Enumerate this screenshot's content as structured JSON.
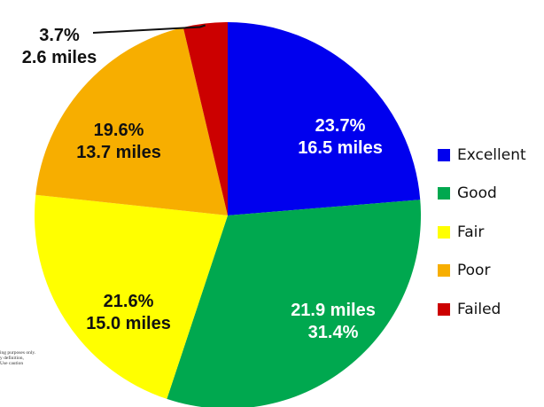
{
  "chart_data": {
    "type": "pie",
    "start_angle_deg": 0,
    "direction": "clockwise",
    "slices": [
      {
        "name": "Excellent",
        "percent": 23.7,
        "miles": 16.5,
        "percent_label": "23.7%",
        "miles_label": "16.5 miles",
        "color": "#0000EE",
        "label_color": "#FFFFFF",
        "label_order": "percent-first"
      },
      {
        "name": "Good",
        "percent": 31.4,
        "miles": 21.9,
        "percent_label": "31.4%",
        "miles_label": "21.9 miles",
        "color": "#00A84F",
        "label_color": "#FFFFFF",
        "label_order": "miles-first"
      },
      {
        "name": "Fair",
        "percent": 21.6,
        "miles": 15.0,
        "percent_label": "21.6%",
        "miles_label": "15.0 miles",
        "color": "#FFFF00",
        "label_color": "#111111",
        "label_order": "percent-first"
      },
      {
        "name": "Poor",
        "percent": 19.6,
        "miles": 13.7,
        "percent_label": "19.6%",
        "miles_label": "13.7 miles",
        "color": "#F7AE00",
        "label_color": "#111111",
        "label_order": "percent-first"
      },
      {
        "name": "Failed",
        "percent": 3.7,
        "miles": 2.6,
        "percent_label": "3.7%",
        "miles_label": "2.6 miles",
        "color": "#CC0000",
        "label_color": "#111111",
        "label_order": "percent-first",
        "leader_line": true
      }
    ],
    "legend": {
      "placement": "right",
      "items": [
        "Excellent",
        "Good",
        "Fair",
        "Poor",
        "Failed"
      ]
    }
  },
  "footnote": {
    "lines": [
      "ing purposes only.",
      "y definition,",
      "Use caution"
    ]
  }
}
